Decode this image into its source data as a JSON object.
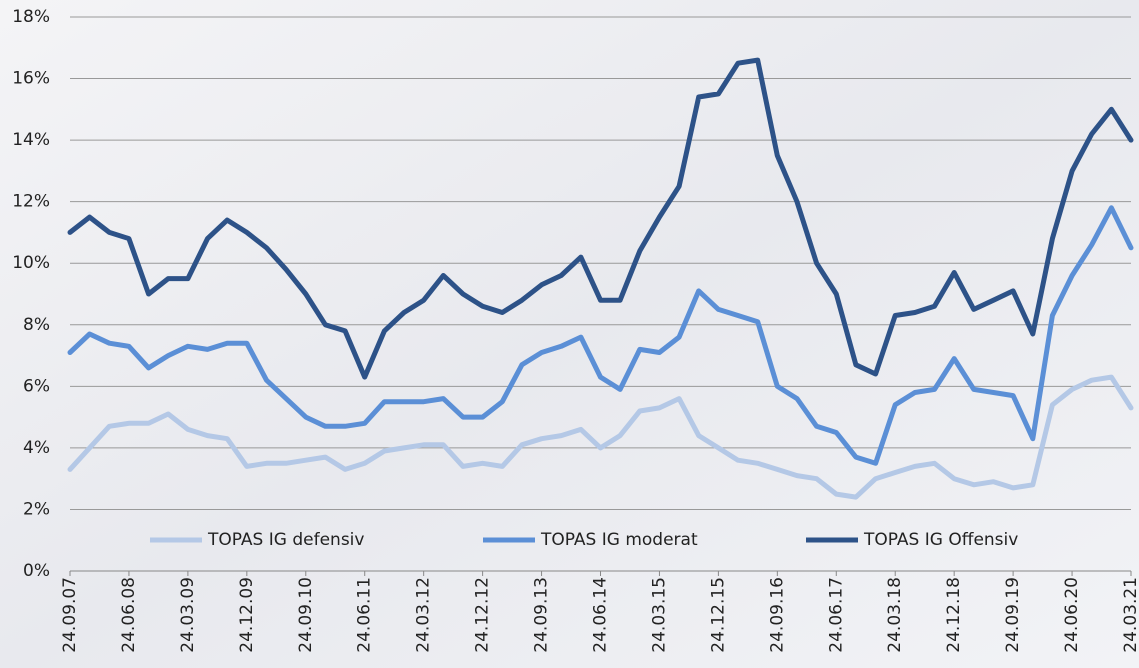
{
  "chart_data": {
    "type": "line",
    "x": [
      "24.09.07",
      "24.12.07",
      "24.03.08",
      "24.06.08",
      "24.09.08",
      "24.12.08",
      "24.03.09",
      "24.06.09",
      "24.09.09",
      "24.12.09",
      "24.03.10",
      "24.06.10",
      "24.09.10",
      "24.12.10",
      "24.03.11",
      "24.06.11",
      "24.09.11",
      "24.12.11",
      "24.03.12",
      "24.06.12",
      "24.09.12",
      "24.12.12",
      "24.03.13",
      "24.06.13",
      "24.09.13",
      "24.12.13",
      "24.03.14",
      "24.06.14",
      "24.09.14",
      "24.12.14",
      "24.03.15",
      "24.06.15",
      "24.09.15",
      "24.12.15",
      "24.03.16",
      "24.06.16",
      "24.09.16",
      "24.12.16",
      "24.03.17",
      "24.06.17",
      "24.09.17",
      "24.12.17",
      "24.03.18",
      "24.06.18",
      "24.09.18",
      "24.12.18",
      "24.03.19",
      "24.06.19",
      "24.09.19",
      "24.12.19",
      "24.03.20",
      "24.06.20",
      "24.09.20",
      "24.12.20",
      "24.03.21"
    ],
    "xticks": [
      "24.09.07",
      "24.06.08",
      "24.03.09",
      "24.12.09",
      "24.09.10",
      "24.06.11",
      "24.03.12",
      "24.12.12",
      "24.09.13",
      "24.06.14",
      "24.03.15",
      "24.12.15",
      "24.09.16",
      "24.06.17",
      "24.03.18",
      "24.12.18",
      "24.09.19",
      "24.06.20",
      "24.03.21"
    ],
    "series": [
      {
        "name": "TOPAS IG defensiv",
        "color": "#b4c8e6",
        "values": [
          3.3,
          4.0,
          4.7,
          4.8,
          4.8,
          5.1,
          4.6,
          4.4,
          4.3,
          3.4,
          3.5,
          3.5,
          3.6,
          3.7,
          3.3,
          3.5,
          3.9,
          4.0,
          4.1,
          4.1,
          3.4,
          3.5,
          3.4,
          4.1,
          4.3,
          4.4,
          4.6,
          4.0,
          4.4,
          5.2,
          5.3,
          5.6,
          4.4,
          4.0,
          3.6,
          3.5,
          3.3,
          3.1,
          3.0,
          2.5,
          2.4,
          3.0,
          3.2,
          3.4,
          3.5,
          3.0,
          2.8,
          2.9,
          2.7,
          2.8,
          5.4,
          5.9,
          6.2,
          6.3,
          5.3
        ]
      },
      {
        "name": "TOPAS IG moderat",
        "color": "#5b8fd6",
        "values": [
          7.1,
          7.7,
          7.4,
          7.3,
          6.6,
          7.0,
          7.3,
          7.2,
          7.4,
          7.4,
          6.2,
          5.6,
          5.0,
          4.7,
          4.7,
          4.8,
          5.5,
          5.5,
          5.5,
          5.6,
          5.0,
          5.0,
          5.5,
          6.7,
          7.1,
          7.3,
          7.6,
          6.3,
          5.9,
          7.2,
          7.1,
          7.6,
          9.1,
          8.5,
          8.3,
          8.1,
          6.0,
          5.6,
          4.7,
          4.5,
          3.7,
          3.5,
          5.4,
          5.8,
          5.9,
          6.9,
          5.9,
          5.8,
          5.7,
          4.3,
          8.3,
          9.6,
          10.6,
          11.8,
          10.5
        ]
      },
      {
        "name": "TOPAS IG Offensiv",
        "color": "#2d5288",
        "values": [
          11.0,
          11.5,
          11.0,
          10.8,
          9.0,
          9.5,
          9.5,
          10.8,
          11.4,
          11.0,
          10.5,
          9.8,
          9.0,
          8.0,
          7.8,
          6.3,
          7.8,
          8.4,
          8.8,
          9.6,
          9.0,
          8.6,
          8.4,
          8.8,
          9.3,
          9.6,
          10.2,
          8.8,
          8.8,
          10.4,
          11.5,
          12.5,
          15.4,
          15.5,
          16.5,
          16.6,
          13.5,
          12.0,
          10.0,
          9.0,
          6.7,
          6.4,
          8.3,
          8.4,
          8.6,
          9.7,
          8.5,
          8.8,
          9.1,
          7.7,
          10.8,
          13.0,
          14.2,
          15.0,
          14.0
        ]
      }
    ],
    "ylim": [
      0,
      18
    ],
    "yticks": [
      {
        "value": 0,
        "label": "0%"
      },
      {
        "value": 2,
        "label": "2%"
      },
      {
        "value": 4,
        "label": "4%"
      },
      {
        "value": 6,
        "label": "6%"
      },
      {
        "value": 8,
        "label": "8%"
      },
      {
        "value": 10,
        "label": "10%"
      },
      {
        "value": 12,
        "label": "12%"
      },
      {
        "value": 14,
        "label": "14%"
      },
      {
        "value": 16,
        "label": "16%"
      },
      {
        "value": 18,
        "label": "18%"
      }
    ],
    "grid": true,
    "legend": "bottom"
  }
}
